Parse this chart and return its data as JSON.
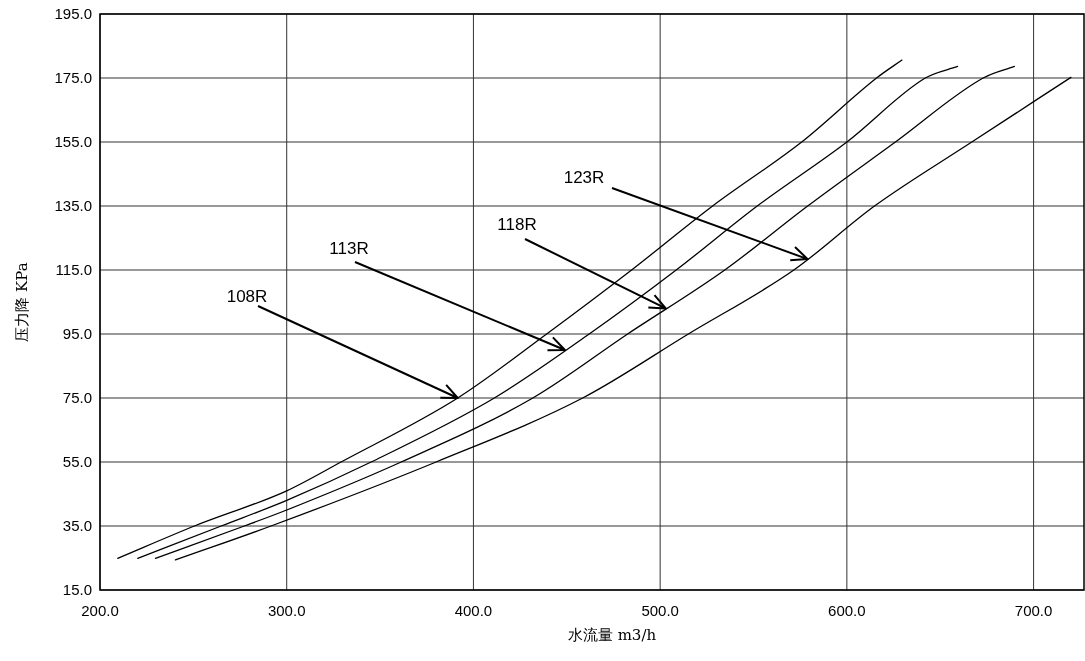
{
  "chart_data": {
    "type": "line",
    "xlabel": "水流量 m3/h",
    "ylabel": "压力降 KPa",
    "xlim": [
      200,
      727
    ],
    "ylim": [
      15,
      195
    ],
    "xticks": [
      {
        "value": 200,
        "label": "200.0"
      },
      {
        "value": 300,
        "label": "300.0"
      },
      {
        "value": 400,
        "label": "400.0"
      },
      {
        "value": 500,
        "label": "500.0"
      },
      {
        "value": 600,
        "label": "600.0"
      },
      {
        "value": 700,
        "label": "700.0"
      }
    ],
    "yticks": [
      {
        "value": 15,
        "label": "15.0"
      },
      {
        "value": 35,
        "label": "35.0"
      },
      {
        "value": 55,
        "label": "55.0"
      },
      {
        "value": 75,
        "label": "75.0"
      },
      {
        "value": 95,
        "label": "95.0"
      },
      {
        "value": 115,
        "label": "115.0"
      },
      {
        "value": 135,
        "label": "135.0"
      },
      {
        "value": 155,
        "label": "155.0"
      },
      {
        "value": 175,
        "label": "175.0"
      },
      {
        "value": 195,
        "label": "195.0"
      }
    ],
    "grid": true,
    "marker": "none",
    "line_style": "solid",
    "series": [
      {
        "color": "#000000",
        "x": [
          209.5,
          250.6,
          300,
          329.1,
          391.6,
          439.2,
          484.7,
          528.1,
          575.8,
          615.9,
          629.5
        ],
        "values": [
          24.9,
          35,
          46,
          55,
          75,
          95,
          115,
          135,
          155,
          175,
          180.6
        ]
      },
      {
        "color": "#000000",
        "x": [
          220.2,
          264.9,
          300,
          345.2,
          411.2,
          462,
          508.6,
          552,
          600,
          642,
          659.3
        ],
        "values": [
          24.9,
          35,
          43,
          55,
          75,
          95,
          115,
          135,
          155,
          175,
          178.6
        ]
      },
      {
        "color": "#000000",
        "x": [
          229.7,
          277.3,
          300,
          361.3,
          431.8,
          482.6,
          534.6,
          579,
          626,
          673,
          689.7
        ],
        "values": [
          24.9,
          35,
          40,
          55,
          75,
          95,
          115,
          135,
          155,
          175,
          178.6
        ]
      },
      {
        "color": "#000000",
        "x": [
          240.4,
          291.6,
          380,
          458.5,
          515.1,
          571.6,
          614.8,
          666.9,
          720
        ],
        "values": [
          24.4,
          35,
          55,
          75,
          95,
          115,
          135,
          155,
          175.2
        ]
      }
    ],
    "annotations": [
      {
        "text": "108R",
        "x": 391.6,
        "y": 75
      },
      {
        "text": "113R",
        "x": 449,
        "y": 90
      },
      {
        "text": "118R",
        "x": 503,
        "y": 103
      },
      {
        "text": "123R",
        "x": 579,
        "y": 118.4
      }
    ]
  }
}
